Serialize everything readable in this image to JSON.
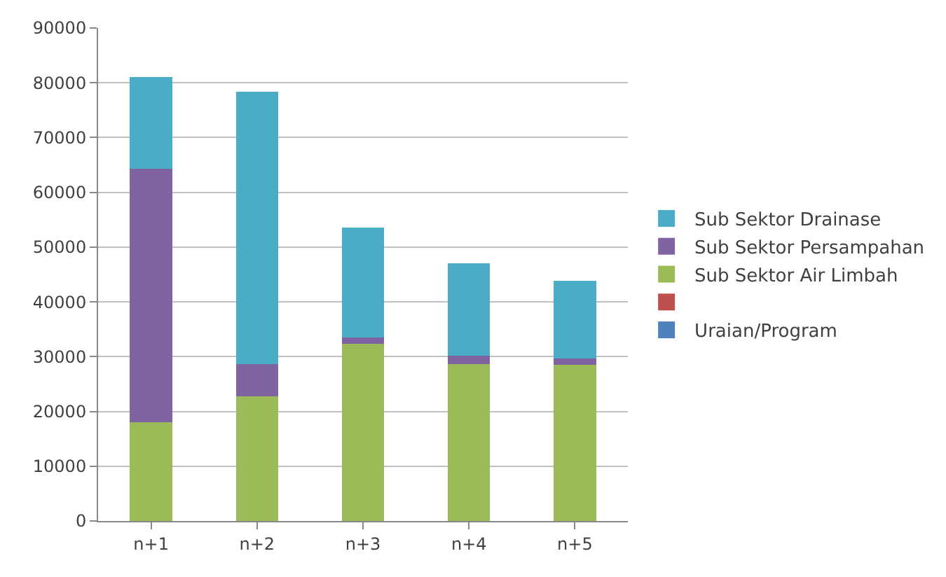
{
  "chart_data": {
    "type": "bar",
    "stacked": true,
    "categories": [
      "n+1",
      "n+2",
      "n+3",
      "n+4",
      "n+5"
    ],
    "series": [
      {
        "name": "Uraian/Program",
        "color": "#4f81bd",
        "values": [
          0,
          0,
          0,
          0,
          0
        ]
      },
      {
        "color": "#c0504d",
        "values": [
          0,
          0,
          0,
          0,
          0
        ]
      },
      {
        "name": "Sub Sektor Air Limbah",
        "color": "#9bbb59",
        "values": [
          18000,
          22700,
          32300,
          28700,
          28500
        ]
      },
      {
        "name": "Sub Sektor Persampahan",
        "color": "#8064a2",
        "values": [
          46300,
          6000,
          1200,
          1500,
          1100
        ]
      },
      {
        "name": "Sub Sektor Drainase",
        "color": "#4bacc6",
        "values": [
          16700,
          49700,
          20100,
          16800,
          14200
        ]
      }
    ],
    "ylim": [
      0,
      90000
    ],
    "yticks": [
      0,
      10000,
      20000,
      30000,
      40000,
      50000,
      60000,
      70000,
      80000,
      90000
    ],
    "grid": "y",
    "legend": "right"
  }
}
